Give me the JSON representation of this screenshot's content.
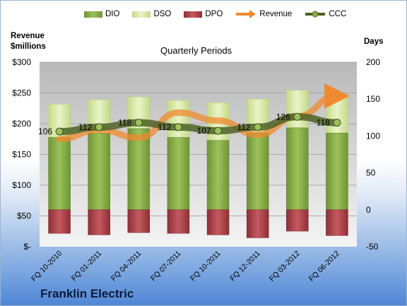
{
  "legend": {
    "dio": "DIO",
    "dso": "DSO",
    "dpo": "DPO",
    "revenue": "Revenue",
    "ccc": "CCC"
  },
  "left_axis_title": [
    "Revenue",
    "$millions"
  ],
  "right_axis_title": "Days",
  "company": "Franklin Electric",
  "colors": {
    "dio": "#8ab04a",
    "dso": "#d8e9a8",
    "dpo": "#b4464d",
    "revenue": "#f08a30",
    "ccc": "#4f6228"
  },
  "chart_data": {
    "type": "bar",
    "title": "Quarterly Periods",
    "categories": [
      "FQ 10-2010",
      "FQ 01-2011",
      "FQ 04-2011",
      "FQ 07-2011",
      "FQ 10-2011",
      "FQ 12-2011",
      "FQ 03-2012",
      "FQ 06-2012"
    ],
    "ylabel_left": "Revenue $millions",
    "ylabel_right": "Days",
    "yleft_ticks": [
      "$-",
      "$50",
      "$100",
      "$150",
      "$200",
      "$250",
      "$300"
    ],
    "yleft_lim": [
      0,
      300
    ],
    "yright_ticks": [
      "-50",
      "0",
      "50",
      "100",
      "150",
      "200"
    ],
    "yright_lim": [
      -50,
      200
    ],
    "series": [
      {
        "name": "DIO",
        "axis": "right",
        "stacked": true,
        "values": [
          98,
          104,
          110,
          98,
          94,
          104,
          111,
          104
        ]
      },
      {
        "name": "DSO",
        "axis": "right",
        "stacked": true,
        "values": [
          45,
          45,
          43,
          50,
          51,
          46,
          51,
          52
        ]
      },
      {
        "name": "DPO",
        "axis": "right",
        "values": [
          -32,
          -34,
          -31,
          -32,
          -34,
          -38,
          -29,
          -35
        ]
      },
      {
        "name": "Revenue",
        "axis": "left",
        "type": "line",
        "values": [
          175,
          190,
          177,
          218,
          205,
          182,
          212,
          245
        ]
      },
      {
        "name": "CCC",
        "axis": "right",
        "type": "line",
        "values": [
          106,
          112,
          118,
          112,
          107,
          112,
          126,
          118
        ],
        "labels": [
          "106",
          "112",
          "118",
          "112",
          "107",
          "112",
          "126",
          "118"
        ]
      }
    ],
    "grid": true,
    "legend_position": "top"
  }
}
